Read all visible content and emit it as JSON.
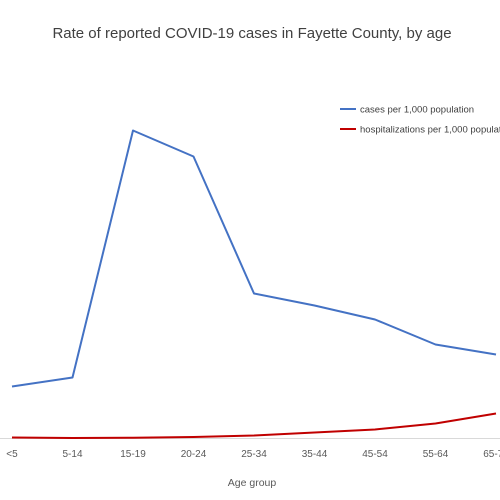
{
  "chart_data": {
    "type": "line",
    "title": "Rate of reported COVID-19 cases in Fayette County, by age",
    "xlabel": "Age group",
    "ylabel": "",
    "categories": [
      "<5",
      "5-14",
      "15-19",
      "20-24",
      "25-34",
      "35-44",
      "45-54",
      "55-64",
      "65-74"
    ],
    "grid": false,
    "legend_position": "top-right",
    "series": [
      {
        "name": "cases per 1,000 population",
        "color": "#4472c4",
        "values": [
          52,
          61,
          308,
          282,
          145,
          133,
          119,
          94,
          84
        ]
      },
      {
        "name": "hospitalizations per 1,000 population",
        "color": "#c00000",
        "values": [
          1.0,
          0.5,
          0.8,
          1.5,
          3,
          6,
          9,
          15,
          25
        ]
      }
    ]
  }
}
